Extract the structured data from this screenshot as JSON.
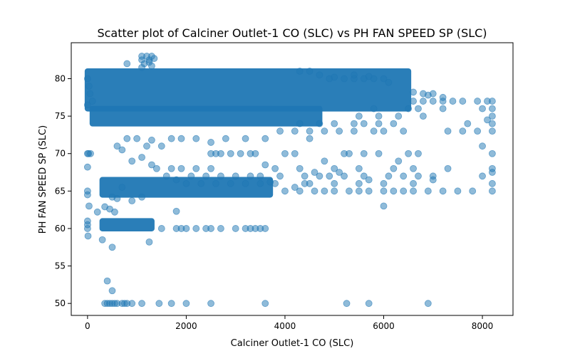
{
  "chart_data": {
    "type": "scatter",
    "title": "Scatter plot of Calciner Outlet-1 CO (SLC) vs PH FAN SPEED SP (SLC)",
    "xlabel": "Calciner Outlet-1 CO (SLC)",
    "ylabel": "PH FAN SPEED SP (SLC)",
    "xlim": [
      -330,
      8620
    ],
    "ylim": [
      48.4,
      84.8
    ],
    "xticks": [
      0,
      2000,
      4000,
      6000,
      8000
    ],
    "yticks": [
      50,
      55,
      60,
      65,
      70,
      75,
      80
    ],
    "marker_color": "#1f77b4",
    "marker_alpha": 0.5,
    "grid": false,
    "legend": "none",
    "dense_bands": [
      {
        "x_range": [
          0,
          6500
        ],
        "y_range": [
          76,
          81
        ]
      },
      {
        "x_range": [
          100,
          4700
        ],
        "y_range": [
          74,
          76
        ]
      },
      {
        "x_range": [
          300,
          3700
        ],
        "y_range": [
          64.5,
          66.5
        ]
      },
      {
        "x_range": [
          300,
          1300
        ],
        "y_range": [
          60,
          61
        ]
      }
    ],
    "points": [
      [
        0,
        80
      ],
      [
        50,
        78
      ],
      [
        100,
        77
      ],
      [
        0,
        76.5
      ],
      [
        30,
        79
      ],
      [
        0,
        70
      ],
      [
        20,
        70
      ],
      [
        60,
        70
      ],
      [
        0,
        65
      ],
      [
        0,
        64.5
      ],
      [
        0,
        61
      ],
      [
        0,
        60.5
      ],
      [
        0,
        60
      ],
      [
        10,
        59
      ],
      [
        0,
        68.2
      ],
      [
        30,
        63
      ],
      [
        350,
        50
      ],
      [
        400,
        50
      ],
      [
        450,
        50
      ],
      [
        500,
        50
      ],
      [
        550,
        50
      ],
      [
        600,
        50
      ],
      [
        700,
        50
      ],
      [
        750,
        50
      ],
      [
        800,
        50
      ],
      [
        900,
        50
      ],
      [
        1100,
        50
      ],
      [
        1450,
        50
      ],
      [
        1700,
        50
      ],
      [
        2000,
        50
      ],
      [
        2500,
        50
      ],
      [
        3600,
        50
      ],
      [
        5250,
        50
      ],
      [
        5700,
        50
      ],
      [
        6900,
        50
      ],
      [
        400,
        53
      ],
      [
        500,
        51.7
      ],
      [
        300,
        58.5
      ],
      [
        500,
        57.5
      ],
      [
        1250,
        58.2
      ],
      [
        1800,
        62.3
      ],
      [
        350,
        62.9
      ],
      [
        450,
        62.6
      ],
      [
        550,
        62.2
      ],
      [
        200,
        62.2
      ],
      [
        1500,
        60
      ],
      [
        2000,
        60
      ],
      [
        2500,
        60
      ],
      [
        3000,
        60
      ],
      [
        3300,
        60
      ],
      [
        3500,
        60
      ],
      [
        3600,
        60
      ],
      [
        2200,
        60
      ],
      [
        2700,
        60
      ],
      [
        1800,
        60
      ],
      [
        3200,
        60
      ],
      [
        3400,
        60
      ],
      [
        1900,
        60
      ],
      [
        2400,
        60
      ],
      [
        600,
        64
      ],
      [
        700,
        65.5
      ],
      [
        900,
        63.7
      ],
      [
        1100,
        64.2
      ],
      [
        500,
        64.2
      ],
      [
        4000,
        65
      ],
      [
        4300,
        65
      ],
      [
        4600,
        65
      ],
      [
        4800,
        65
      ],
      [
        5000,
        65
      ],
      [
        5300,
        65
      ],
      [
        5500,
        65
      ],
      [
        5700,
        65
      ],
      [
        6000,
        65
      ],
      [
        6200,
        65
      ],
      [
        6400,
        65
      ],
      [
        6600,
        65
      ],
      [
        6900,
        65
      ],
      [
        7200,
        65
      ],
      [
        7500,
        65
      ],
      [
        7800,
        65
      ],
      [
        8200,
        65
      ],
      [
        4200,
        65.5
      ],
      [
        4400,
        66
      ],
      [
        3800,
        66
      ],
      [
        3900,
        67
      ],
      [
        4400,
        67
      ],
      [
        4700,
        67
      ],
      [
        4900,
        67
      ],
      [
        5200,
        67
      ],
      [
        5600,
        67
      ],
      [
        6100,
        67
      ],
      [
        6400,
        67
      ],
      [
        6700,
        67
      ],
      [
        7000,
        67
      ],
      [
        8000,
        67
      ],
      [
        4500,
        66
      ],
      [
        5000,
        66
      ],
      [
        5500,
        66
      ],
      [
        6000,
        66
      ],
      [
        6600,
        66
      ],
      [
        7000,
        66.5
      ],
      [
        8200,
        66
      ],
      [
        4600,
        67.5
      ],
      [
        4300,
        68
      ],
      [
        5000,
        68
      ],
      [
        5500,
        68
      ],
      [
        6200,
        68
      ],
      [
        6600,
        68
      ],
      [
        7300,
        68
      ],
      [
        8200,
        68
      ],
      [
        8200,
        67.5
      ],
      [
        3800,
        68
      ],
      [
        3600,
        68.5
      ],
      [
        5100,
        67.5
      ],
      [
        5700,
        66.5
      ],
      [
        4800,
        69
      ],
      [
        6300,
        69
      ],
      [
        6700,
        70
      ],
      [
        4000,
        70
      ],
      [
        4200,
        70
      ],
      [
        3300,
        70
      ],
      [
        3400,
        70
      ],
      [
        2500,
        70
      ],
      [
        2600,
        70
      ],
      [
        2700,
        70
      ],
      [
        2900,
        70
      ],
      [
        3100,
        70
      ],
      [
        5200,
        70
      ],
      [
        5300,
        70
      ],
      [
        5600,
        70
      ],
      [
        5900,
        70
      ],
      [
        6500,
        70
      ],
      [
        8200,
        70
      ],
      [
        8000,
        71
      ],
      [
        6000,
        63
      ],
      [
        1700,
        72
      ],
      [
        1900,
        72
      ],
      [
        2200,
        72
      ],
      [
        2500,
        71.5
      ],
      [
        2800,
        72
      ],
      [
        3200,
        72
      ],
      [
        3600,
        72
      ],
      [
        4500,
        72
      ],
      [
        800,
        72
      ],
      [
        1000,
        72
      ],
      [
        1300,
        71.8
      ],
      [
        1500,
        71
      ],
      [
        1200,
        71
      ],
      [
        600,
        71
      ],
      [
        700,
        70.5
      ],
      [
        900,
        69
      ],
      [
        1100,
        69.5
      ],
      [
        1300,
        68.5
      ],
      [
        1400,
        68
      ],
      [
        1600,
        67
      ],
      [
        1800,
        66.5
      ],
      [
        2000,
        66
      ],
      [
        2300,
        66
      ],
      [
        2600,
        66
      ],
      [
        2900,
        66
      ],
      [
        3200,
        66
      ],
      [
        3500,
        66
      ],
      [
        3700,
        66.2
      ],
      [
        2100,
        67
      ],
      [
        2400,
        67
      ],
      [
        2700,
        67
      ],
      [
        3000,
        67
      ],
      [
        3300,
        67
      ],
      [
        3500,
        67
      ],
      [
        1700,
        68
      ],
      [
        1900,
        68
      ],
      [
        2200,
        68
      ],
      [
        2500,
        68
      ],
      [
        3900,
        73
      ],
      [
        4200,
        73
      ],
      [
        4500,
        73
      ],
      [
        4800,
        73
      ],
      [
        5100,
        73
      ],
      [
        5400,
        73
      ],
      [
        6000,
        73
      ],
      [
        6400,
        73
      ],
      [
        7300,
        73
      ],
      [
        7600,
        73
      ],
      [
        8200,
        73
      ],
      [
        7900,
        73
      ],
      [
        5800,
        73
      ],
      [
        4300,
        74
      ],
      [
        4700,
        74
      ],
      [
        5000,
        74
      ],
      [
        5400,
        74
      ],
      [
        5600,
        74
      ],
      [
        5900,
        74
      ],
      [
        6200,
        74
      ],
      [
        7700,
        74
      ],
      [
        8200,
        74
      ],
      [
        8100,
        74.5
      ],
      [
        5500,
        75
      ],
      [
        5900,
        75
      ],
      [
        6300,
        75
      ],
      [
        6800,
        75
      ],
      [
        8200,
        75
      ],
      [
        6500,
        76
      ],
      [
        6700,
        76
      ],
      [
        7200,
        76
      ],
      [
        8000,
        76
      ],
      [
        8200,
        76
      ],
      [
        5800,
        76
      ],
      [
        6600,
        77
      ],
      [
        6800,
        77
      ],
      [
        7000,
        77
      ],
      [
        7200,
        77
      ],
      [
        7400,
        77
      ],
      [
        7600,
        77
      ],
      [
        7900,
        77
      ],
      [
        8100,
        77
      ],
      [
        8200,
        77
      ],
      [
        6800,
        78
      ],
      [
        7000,
        78
      ],
      [
        7200,
        77.5
      ],
      [
        6600,
        78.2
      ],
      [
        6900,
        77.8
      ],
      [
        4900,
        80
      ],
      [
        5200,
        80
      ],
      [
        5400,
        80
      ],
      [
        5600,
        80
      ],
      [
        5800,
        80
      ],
      [
        6000,
        80
      ],
      [
        4300,
        81
      ],
      [
        4500,
        81
      ],
      [
        4700,
        80.5
      ],
      [
        5000,
        80.2
      ],
      [
        5400,
        80.5
      ],
      [
        5700,
        80.3
      ],
      [
        6100,
        79.5
      ],
      [
        1100,
        83
      ],
      [
        1200,
        83
      ],
      [
        1250,
        82.5
      ],
      [
        1150,
        82
      ],
      [
        1300,
        83
      ],
      [
        1250,
        82.2
      ],
      [
        1100,
        82.5
      ],
      [
        800,
        82
      ],
      [
        1100,
        81.5
      ],
      [
        1300,
        81.7
      ],
      [
        1350,
        82.7
      ]
    ]
  }
}
